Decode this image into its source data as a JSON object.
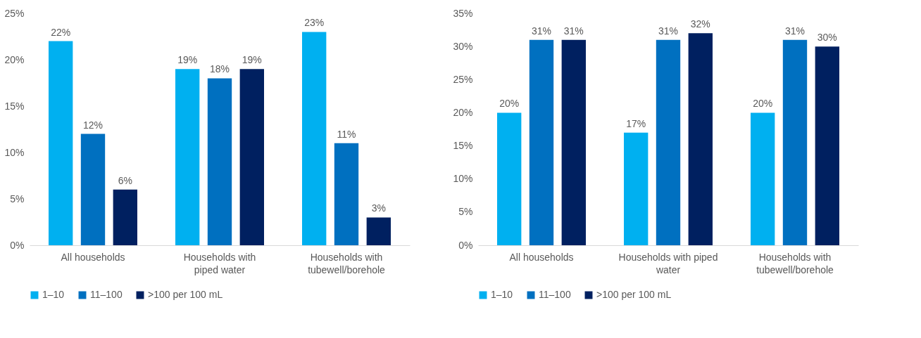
{
  "chart_data": [
    {
      "type": "bar",
      "categories": [
        "All households",
        "Households with\npiped water",
        "Households with\ntubewell/borehole"
      ],
      "series": [
        {
          "name": "1–10",
          "color": "#00b0f0",
          "values": [
            22,
            19,
            23
          ],
          "value_labels": [
            "22%",
            "19%",
            "23%"
          ]
        },
        {
          "name": "11–100",
          "color": "#0070c0",
          "values": [
            12,
            18,
            11
          ],
          "value_labels": [
            "12%",
            "18%",
            "11%"
          ]
        },
        {
          "name": ">100 per 100 mL",
          "color": "#002060",
          "values": [
            6,
            19,
            3
          ],
          "value_labels": [
            "6%",
            "19%",
            "3%"
          ]
        }
      ],
      "ylim": [
        0,
        25
      ],
      "yticks": [
        {
          "value": 0,
          "label": "0%"
        },
        {
          "value": 5,
          "label": "5%"
        },
        {
          "value": 10,
          "label": "10%"
        },
        {
          "value": 15,
          "label": "15%"
        },
        {
          "value": 20,
          "label": "20%"
        },
        {
          "value": 25,
          "label": "25%"
        }
      ],
      "grid": false,
      "legend": "bottom"
    },
    {
      "type": "bar",
      "categories": [
        "All households",
        "Households with piped\nwater",
        "Households with\ntubewell/borehole"
      ],
      "series": [
        {
          "name": "1–10",
          "color": "#00b0f0",
          "values": [
            20,
            17,
            20
          ],
          "value_labels": [
            "20%",
            "17%",
            "20%"
          ]
        },
        {
          "name": "11–100",
          "color": "#0070c0",
          "values": [
            31,
            31,
            31
          ],
          "value_labels": [
            "31%",
            "31%",
            "31%"
          ]
        },
        {
          "name": ">100 per 100 mL",
          "color": "#002060",
          "values": [
            31,
            32,
            30
          ],
          "value_labels": [
            "31%",
            "32%",
            "30%"
          ]
        }
      ],
      "ylim": [
        0,
        35
      ],
      "yticks": [
        {
          "value": 0,
          "label": "0%"
        },
        {
          "value": 5,
          "label": "5%"
        },
        {
          "value": 10,
          "label": "10%"
        },
        {
          "value": 15,
          "label": "15%"
        },
        {
          "value": 20,
          "label": "20%"
        },
        {
          "value": 25,
          "label": "25%"
        },
        {
          "value": 30,
          "label": "30%"
        },
        {
          "value": 35,
          "label": "35%"
        }
      ],
      "grid": false,
      "legend": "bottom"
    }
  ]
}
